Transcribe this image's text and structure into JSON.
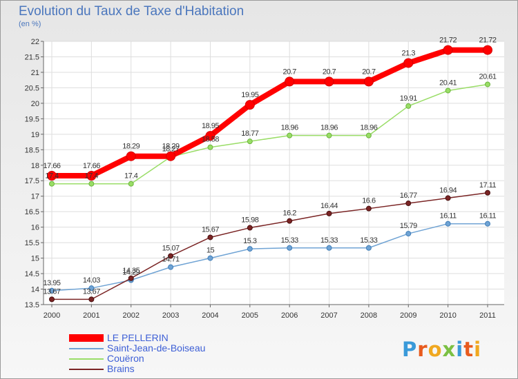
{
  "header": {
    "title": "Evolution du Taux de Taxe d'Habitation",
    "subtitle": "(en %)"
  },
  "chart_data": {
    "type": "line",
    "title": "Evolution du Taux de Taxe d'Habitation",
    "subtitle": "(en %)",
    "xlabel": "",
    "ylabel": "",
    "x": [
      "2000",
      "2001",
      "2002",
      "2003",
      "2004",
      "2005",
      "2006",
      "2007",
      "2008",
      "2009",
      "2010",
      "2011"
    ],
    "ylim": [
      13.5,
      22
    ],
    "yticks": [
      "13.5",
      "14",
      "14.5",
      "15",
      "15.5",
      "16",
      "16.5",
      "17",
      "17.5",
      "18",
      "18.5",
      "19",
      "19.5",
      "20",
      "20.5",
      "21",
      "21.5",
      "22"
    ],
    "grid": true,
    "legend": "bottom-left",
    "series": [
      {
        "name": "LE PELLERIN",
        "color": "#ff0000",
        "values": [
          17.66,
          17.66,
          18.29,
          18.29,
          18.95,
          19.95,
          20.7,
          20.7,
          20.7,
          21.3,
          21.72,
          21.72
        ],
        "labels": [
          "17.66",
          "17.66",
          "18.29",
          "18.29",
          "18.95",
          "19.95",
          "20.7",
          "20.7",
          "20.7",
          "21.3",
          "21.72",
          "21.72"
        ]
      },
      {
        "name": "Saint-Jean-de-Boiseau",
        "color": "#6fa3d4",
        "values": [
          13.95,
          14.03,
          14.29,
          14.71,
          15.0,
          15.3,
          15.33,
          15.33,
          15.33,
          15.79,
          16.11,
          16.11
        ],
        "labels": [
          "13.95",
          "14.03",
          "14.29",
          "14.71",
          "15",
          "15.3",
          "15.33",
          "15.33",
          "15.33",
          "15.79",
          "16.11",
          "16.11"
        ]
      },
      {
        "name": "Couëron",
        "color": "#99dd66",
        "values": [
          17.4,
          17.4,
          17.4,
          18.27,
          18.58,
          18.77,
          18.96,
          18.96,
          18.96,
          19.91,
          20.41,
          20.61
        ],
        "labels": [
          "17.4",
          "17.4",
          "17.4",
          "18.27",
          "18.58",
          "18.77",
          "18.96",
          "18.96",
          "18.96",
          "19.91",
          "20.41",
          "20.61"
        ]
      },
      {
        "name": "Brains",
        "color": "#7a2424",
        "values": [
          13.67,
          13.67,
          14.35,
          15.07,
          15.67,
          15.98,
          16.2,
          16.44,
          16.6,
          16.77,
          16.94,
          17.11
        ],
        "labels": [
          "13.67",
          "13.67",
          "14.35",
          "15.07",
          "15.67",
          "15.98",
          "16.2",
          "16.44",
          "16.6",
          "16.77",
          "16.94",
          "17.11"
        ]
      }
    ]
  },
  "brand": {
    "letters": [
      "P",
      "r",
      "o",
      "x",
      "i",
      "t",
      "i"
    ],
    "colors": [
      "#3a9ad9",
      "#e85b1e",
      "#f0a820",
      "#7bc043",
      "#3a9ad9",
      "#e85b1e",
      "#f0a820"
    ]
  }
}
